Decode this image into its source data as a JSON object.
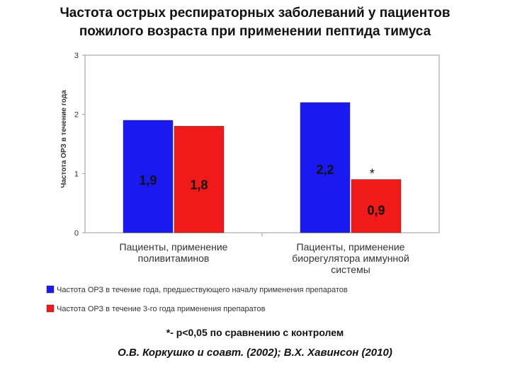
{
  "slide": {
    "title_line1": "Частота острых респираторных заболеваний у пациентов",
    "title_line2": "пожилого возраста при применении пептида тимуса",
    "significance_note": "*- р<0,05 по сравнению с контролем",
    "citation": "О.В. Коркушко и соавт. (2002); В.Х. Хавинсон (2010)"
  },
  "chart_data": {
    "type": "bar",
    "title": "",
    "ylabel": "Частота ОРЗ в течение года",
    "ylim": [
      0,
      3
    ],
    "yticks": [
      "0",
      "1",
      "2",
      "3"
    ],
    "grid": false,
    "legend_position": "bottom",
    "categories": [
      [
        "Пациенты, применение",
        "поливитаминов"
      ],
      [
        "Пациенты, применение",
        "биорегулятора иммунной",
        "системы"
      ]
    ],
    "series": [
      {
        "name": "Частота ОРЗ в течение года, предшествующего началу применения препаратов",
        "color": "#1a1af0",
        "values": [
          1.9,
          2.2
        ],
        "value_labels": [
          "1,9",
          "2,2"
        ]
      },
      {
        "name": "Частота ОРЗ в течение 3-го года применения препаратов",
        "color": "#f01a1a",
        "values": [
          1.8,
          0.9
        ],
        "value_labels": [
          "1,8",
          "0,9"
        ]
      }
    ],
    "annotations": [
      {
        "text": "*",
        "category_index": 1,
        "series_index": 1
      }
    ]
  }
}
